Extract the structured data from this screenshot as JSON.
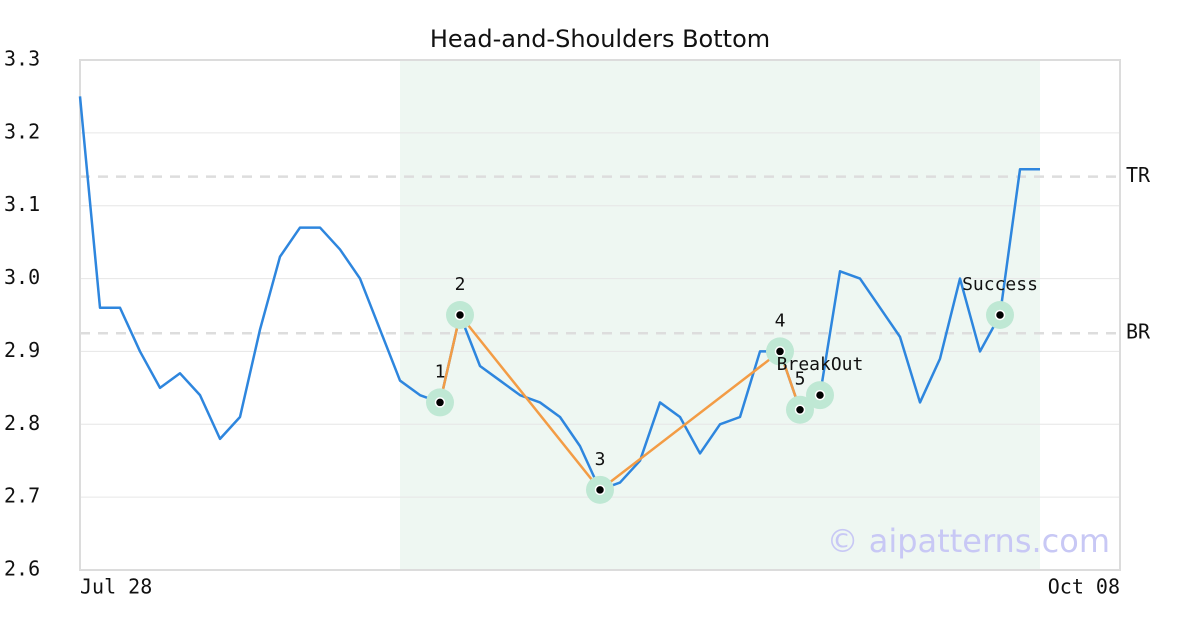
{
  "chart_data": {
    "type": "line",
    "title": "Head-and-Shoulders Bottom",
    "categories": [
      "Jul 28",
      null,
      null,
      null,
      null,
      null,
      null,
      null,
      null,
      null,
      null,
      null,
      null,
      null,
      null,
      null,
      null,
      null,
      null,
      null,
      null,
      null,
      null,
      null,
      null,
      null,
      null,
      null,
      null,
      null,
      null,
      null,
      null,
      null,
      null,
      null,
      null,
      null,
      null,
      null,
      null,
      null,
      null,
      null,
      null,
      null,
      null,
      null,
      null,
      null,
      null,
      null,
      "Oct 08"
    ],
    "series": [
      {
        "color": "#2e86de",
        "values": [
          3.25,
          2.96,
          2.96,
          2.9,
          2.85,
          2.87,
          2.84,
          2.78,
          2.81,
          2.93,
          3.03,
          3.07,
          3.07,
          3.04,
          3.0,
          2.93,
          2.86,
          2.84,
          2.83,
          2.95,
          2.88,
          2.86,
          2.84,
          2.83,
          2.81,
          2.77,
          2.71,
          2.72,
          2.75,
          2.83,
          2.81,
          2.76,
          2.8,
          2.81,
          2.9,
          2.9,
          2.82,
          2.84,
          3.01,
          3.0,
          2.96,
          2.92,
          2.83,
          2.89,
          3.0,
          2.9,
          2.95,
          3.15,
          3.15,
          null,
          null,
          null,
          null
        ]
      }
    ],
    "ylim": [
      2.6,
      3.3
    ],
    "yticks": [
      2.6,
      2.7,
      2.8,
      2.9,
      {
        "value": 3,
        "label": "3.0"
      },
      3.1,
      3.2,
      3.3
    ],
    "grid": true,
    "shade": {
      "from": 16,
      "to": 48,
      "color": "#eef7f2"
    },
    "levels": [
      {
        "label": "TR",
        "value": 3.14
      },
      {
        "label": "BR",
        "value": 2.925
      }
    ],
    "points": [
      {
        "label": "1",
        "index": 18,
        "value": 2.83
      },
      {
        "label": "2",
        "index": 19,
        "value": 2.95
      },
      {
        "label": "3",
        "index": 26,
        "value": 2.71
      },
      {
        "label": "4",
        "index": 35,
        "value": 2.9
      },
      {
        "label": "5",
        "index": 36,
        "value": 2.82
      },
      {
        "label": "BreakOut",
        "index": 37,
        "value": 2.84
      },
      {
        "label": "Success",
        "index": 46,
        "value": 2.95
      }
    ],
    "pattern_color": "#f39c45",
    "watermark": "© aipatterns.com"
  }
}
